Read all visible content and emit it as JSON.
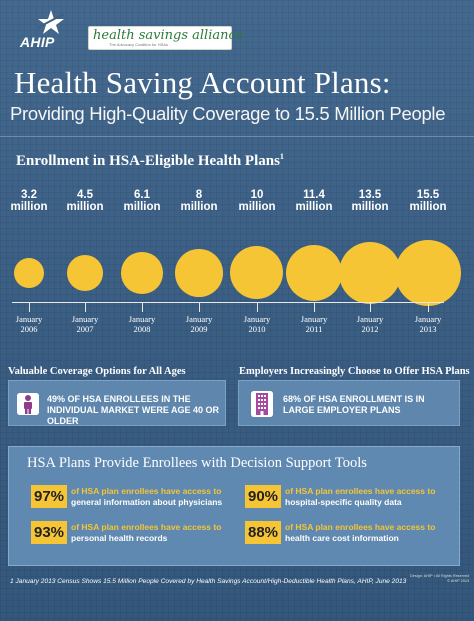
{
  "header": {
    "ahip_logo_text": "AHIP",
    "hsa_logo_main": "health savings alliance",
    "hsa_logo_tagline": "The Advocacy Coalition for HSAs"
  },
  "title": "Health Saving Account Plans:",
  "subtitle": "Providing High-Quality Coverage to 15.5 Million People",
  "enrollment": {
    "heading": "Enrollment in HSA-Eligible Health Plans",
    "footnote_marker": "1",
    "unit": "million",
    "bubble_color": "#f5c535",
    "points": [
      {
        "value": "3.2",
        "month": "January",
        "year": "2006"
      },
      {
        "value": "4.5",
        "month": "January",
        "year": "2007"
      },
      {
        "value": "6.1",
        "month": "January",
        "year": "2008"
      },
      {
        "value": "8",
        "month": "January",
        "year": "2009"
      },
      {
        "value": "10",
        "month": "January",
        "year": "2010"
      },
      {
        "value": "11.4",
        "month": "January",
        "year": "2011"
      },
      {
        "value": "13.5",
        "month": "January",
        "year": "2012"
      },
      {
        "value": "15.5",
        "month": "January",
        "year": "2013"
      }
    ]
  },
  "coverage": {
    "heading": "Valuable Coverage Options for All Ages",
    "icon": "person-icon",
    "text": "49% OF HSA ENROLLEES IN THE INDIVIDUAL MARKET WERE AGE 40 OR OLDER"
  },
  "employers": {
    "heading": "Employers Increasingly Choose to Offer HSA Plans",
    "icon": "building-icon",
    "text": "68% OF HSA ENROLLMENT IS IN LARGE EMPLOYER PLANS"
  },
  "tools": {
    "heading": "HSA Plans Provide Enrollees with Decision Support Tools",
    "highlight_color": "#f5c535",
    "stats": [
      {
        "percent": "97%",
        "lead": "of HSA plan enrollees have access to",
        "detail": "general information about physicians"
      },
      {
        "percent": "90%",
        "lead": "of HSA plan enrollees have access to",
        "detail": "hospital-specific quality data"
      },
      {
        "percent": "93%",
        "lead": "of HSA plan enrollees have access to",
        "detail": "personal health records"
      },
      {
        "percent": "88%",
        "lead": "of HSA plan enrollees have access to",
        "detail": "health care cost information"
      }
    ]
  },
  "footnote": "1 January 2013 Census Shows 15.5 Million People Covered by Health Savings Account/High-Deductible Health Plans, AHIP, June 2013",
  "copyright": {
    "line1": "Design: AHIP • All Rights Reserved",
    "line2": "© AHIP 2013"
  }
}
